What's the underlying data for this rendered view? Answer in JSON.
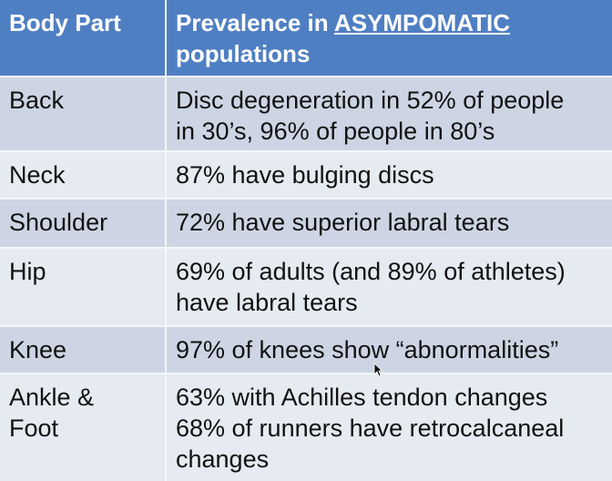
{
  "table": {
    "headers": {
      "body_part": "Body Part",
      "prevalence_prefix": "Prevalence in ",
      "prevalence_emphasis": "ASYMPOMATIC",
      "prevalence_suffix": "populations"
    },
    "rows": [
      {
        "part": "Back",
        "lines": [
          "Disc degeneration in 52% of people",
          "in 30’s, 96% of people in 80’s"
        ]
      },
      {
        "part": "Neck",
        "lines": [
          "87% have bulging discs"
        ]
      },
      {
        "part": "Shoulder",
        "lines": [
          "72% have superior labral tears"
        ]
      },
      {
        "part": "Hip",
        "lines": [
          "69% of adults (and 89% of athletes)",
          "have labral tears"
        ]
      },
      {
        "part": "Knee",
        "lines": [
          "97% of knees show “abnormalities”"
        ]
      },
      {
        "part_lines": [
          "Ankle &",
          "Foot"
        ],
        "lines": [
          "63% with Achilles tendon changes",
          "68% of runners have retrocalcaneal",
          "changes"
        ]
      }
    ]
  },
  "colors": {
    "header_bg": "#4f7fc3",
    "row_dark": "#cdd5e4",
    "row_light": "#e6eaf1"
  }
}
